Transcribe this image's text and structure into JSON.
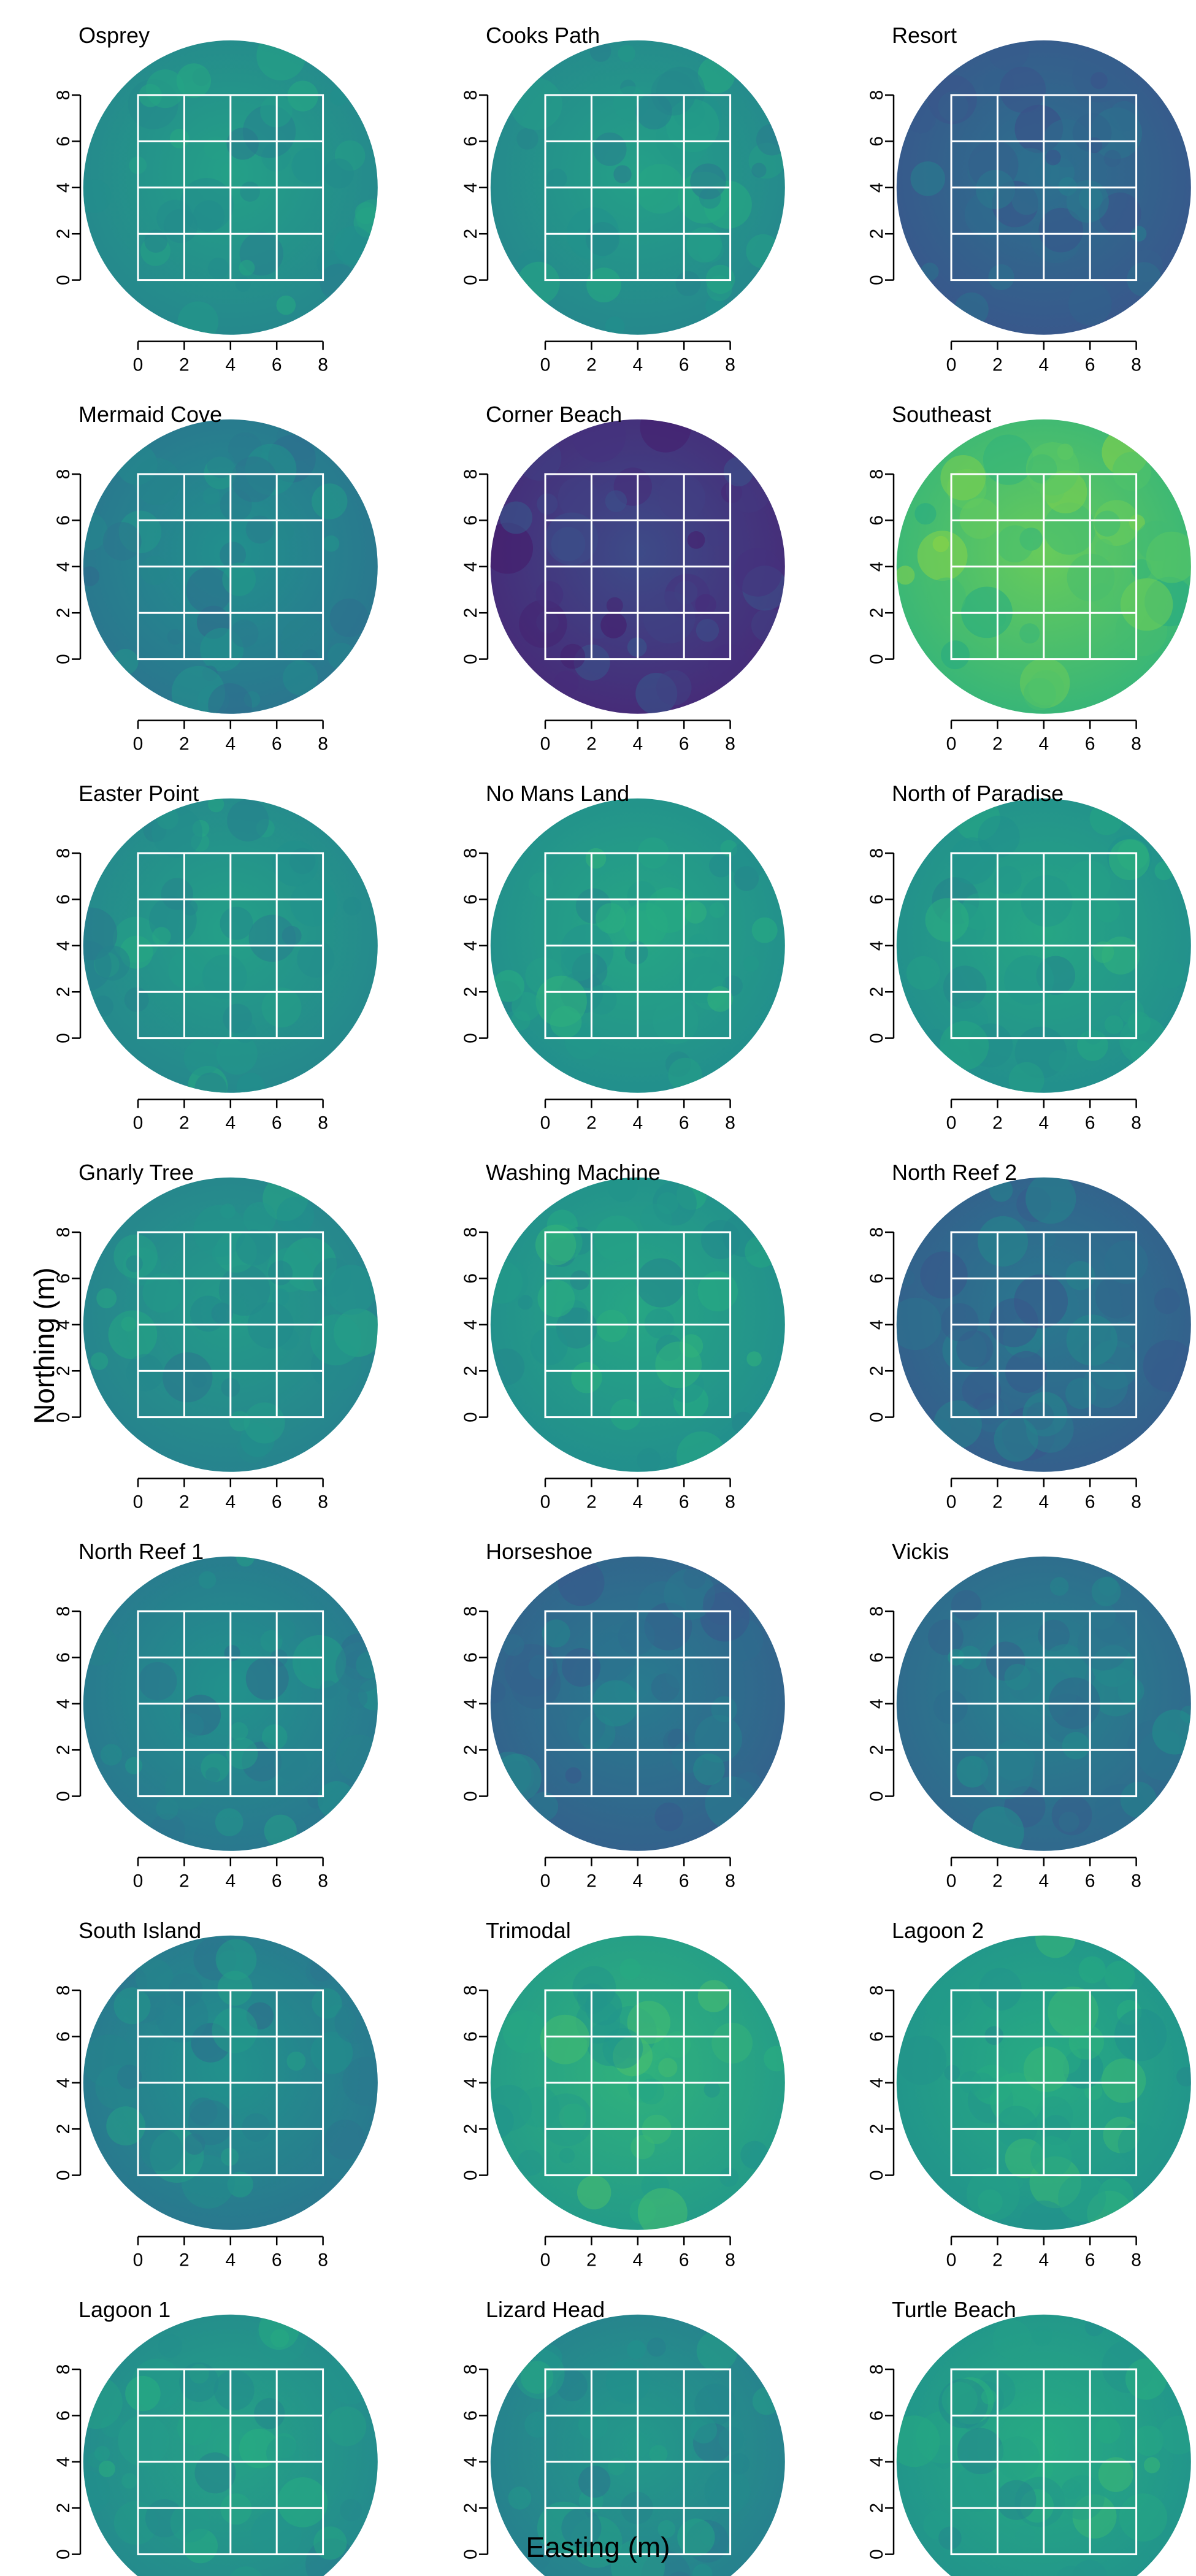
{
  "chart_data": {
    "type": "heatmap",
    "layout": "small-multiples",
    "rows": 7,
    "cols": 3,
    "xlabel": "Easting (m)",
    "ylabel": "Northing (m)",
    "xlim": [
      0,
      8
    ],
    "ylim": [
      0,
      8
    ],
    "xticks": [
      "0",
      "2",
      "4",
      "6",
      "8"
    ],
    "yticks": [
      "0",
      "2",
      "4",
      "6",
      "8"
    ],
    "quadrat_grid": {
      "xmin": 0,
      "xmax": 8,
      "ymin": 0,
      "ymax": 8,
      "step": 2,
      "color": "#ffffff"
    },
    "colormap": "viridis",
    "colors": {
      "low": "#440154",
      "mid": "#21918c",
      "high": "#fde725"
    },
    "panels": [
      {
        "title": "Osprey",
        "tone": 0.52
      },
      {
        "title": "Cooks Path",
        "tone": 0.52
      },
      {
        "title": "Resort",
        "tone": 0.33
      },
      {
        "title": "Mermaid Cove",
        "tone": 0.45
      },
      {
        "title": "Corner Beach",
        "tone": 0.18
      },
      {
        "title": "Southeast",
        "tone": 0.72
      },
      {
        "title": "Easter Point",
        "tone": 0.52
      },
      {
        "title": "No Mans Land",
        "tone": 0.55
      },
      {
        "title": "North of Paradise",
        "tone": 0.55
      },
      {
        "title": "Gnarly Tree",
        "tone": 0.5
      },
      {
        "title": "Washing Machine",
        "tone": 0.55
      },
      {
        "title": "North Reef 2",
        "tone": 0.36
      },
      {
        "title": "North Reef 1",
        "tone": 0.46
      },
      {
        "title": "Horseshoe",
        "tone": 0.37
      },
      {
        "title": "Vickis",
        "tone": 0.4
      },
      {
        "title": "South Island",
        "tone": 0.46
      },
      {
        "title": "Trimodal",
        "tone": 0.6
      },
      {
        "title": "Lagoon 2",
        "tone": 0.57
      },
      {
        "title": "Lagoon 1",
        "tone": 0.53
      },
      {
        "title": "Lizard Head",
        "tone": 0.49
      },
      {
        "title": "Turtle Beach",
        "tone": 0.57
      }
    ]
  }
}
